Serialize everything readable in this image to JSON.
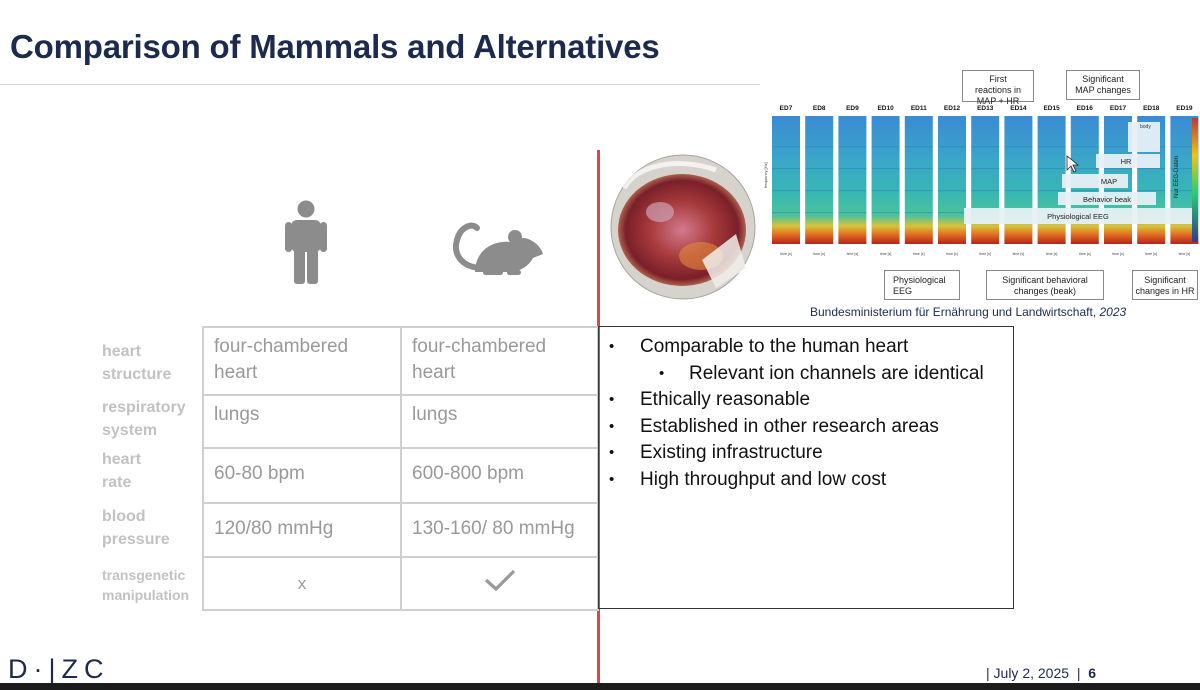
{
  "title": "Comparison of Mammals and Alternatives",
  "icons": {
    "human": "human-figure-icon",
    "rat": "rat-icon",
    "egg": "chicken-egg-image"
  },
  "row_labels": [
    {
      "l1": "heart",
      "l2": "structure"
    },
    {
      "l1": "respiratory",
      "l2": "system"
    },
    {
      "l1": "heart",
      "l2": "rate"
    },
    {
      "l1": "blood",
      "l2": "pressure"
    },
    {
      "l1": "transgenetic",
      "l2": "manipulation"
    }
  ],
  "table": {
    "rows": [
      {
        "human": {
          "l1": "four-chambered",
          "l2": "heart"
        },
        "rodent": {
          "l1": "four-chambered",
          "l2": "heart"
        }
      },
      {
        "human": "lungs",
        "rodent": "lungs"
      },
      {
        "human": "60-80 bpm",
        "rodent": "600-800 bpm"
      },
      {
        "human": "120/80 mmHg",
        "rodent": "130-160/ 80 mmHg"
      }
    ],
    "transgenic": {
      "human": "x",
      "rodent": "check-icon"
    }
  },
  "bullets": [
    {
      "dot": "•",
      "text": "Comparable to the human heart"
    },
    {
      "dot": "•",
      "text": "Relevant ion channels are identical",
      "sub": true
    },
    {
      "dot": "•",
      "text": "Ethically reasonable"
    },
    {
      "dot": "•",
      "text": "Established in other research areas"
    },
    {
      "dot": "•",
      "text": "Existing infrastructure"
    },
    {
      "dot": "•",
      "text": "High throughput and low cost"
    }
  ],
  "figure": {
    "days": [
      "ED7",
      "ED8",
      "ED9",
      "ED10",
      "ED11",
      "ED12",
      "ED13",
      "ED14",
      "ED15",
      "ED16",
      "ED17",
      "ED18",
      "ED19"
    ],
    "callouts_top": [
      {
        "l1": "First",
        "l2": "reactions in",
        "l3": "MAP + HR"
      },
      {
        "l1": "Significant",
        "l2": "MAP changes"
      }
    ],
    "callouts_bottom": [
      {
        "l1": "Physiological",
        "l2": "EEG"
      },
      {
        "l1": "Significant behavioral",
        "l2": "changes (beak)"
      },
      {
        "l1": "Significant",
        "l2": "changes in HR"
      }
    ],
    "bands": {
      "hr": "HR",
      "map": "MAP",
      "beak": "Behavior beak",
      "eeg": "Physiological EEG",
      "body": "body",
      "only_eeg": "Nur EEG-Daten"
    },
    "time_label": "time [s]",
    "y_label": "frequency [Hz]",
    "colors": {
      "low": "#3a7fd0",
      "mid": "#36b7b5",
      "high": "#e05a1f"
    }
  },
  "caption": {
    "text": "Bundesministerium für Ernährung und Landwirtschaft, ",
    "year": "2023"
  },
  "footer": {
    "logo": "D·|ZC",
    "date": "| July 2, 2025",
    "sep": "|",
    "page": "6"
  },
  "colors": {
    "title": "#1b2a4d",
    "divider": "#d04a4a",
    "table_border": "#cfcfcf",
    "muted_text": "#999999"
  }
}
